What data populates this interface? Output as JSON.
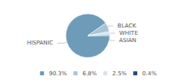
{
  "chart_data": {
    "type": "pie",
    "categories": [
      "HISPANIC",
      "BLACK",
      "WHITE",
      "ASIAN"
    ],
    "values": [
      90.3,
      6.8,
      2.5,
      0.4
    ],
    "value_labels": [
      "90.3%",
      "6.8%",
      "2.5%",
      "0.4%"
    ],
    "colors": [
      "#6e9cb8",
      "#a8c4d5",
      "#d4e5ef",
      "#2b4f72"
    ],
    "legend": "bottom"
  }
}
